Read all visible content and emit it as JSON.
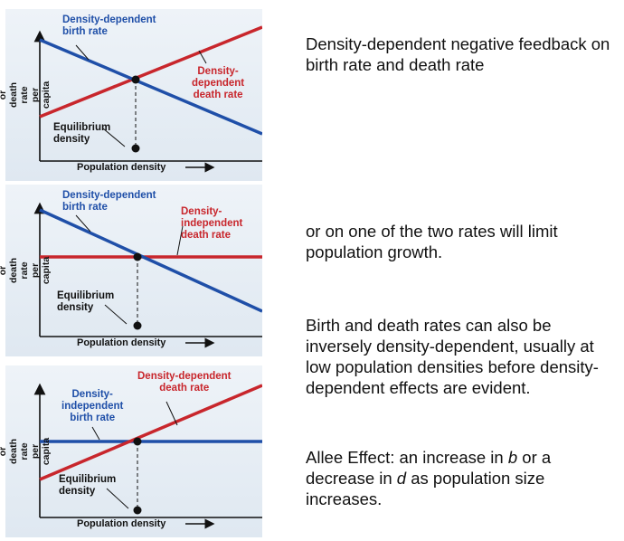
{
  "panels": [
    {
      "title": "density-dependent-birth-and-death",
      "y_axis_label": "Birth or death rate\nper capita",
      "x_axis_label": "Population density",
      "birth_label": "Density-dependent\nbirth rate",
      "death_label": "Density-\ndependent\ndeath rate",
      "equilibrium_label": "Equilibrium\ndensity",
      "birth_color": "#1f4fa8",
      "death_color": "#c8262c"
    },
    {
      "title": "density-dependent-birth-only",
      "y_axis_label": "Birth or death rate\nper capita",
      "x_axis_label": "Population density",
      "birth_label": "Density-dependent\nbirth rate",
      "death_label": "Density-\nindependent\ndeath rate",
      "equilibrium_label": "Equilibrium\ndensity",
      "birth_color": "#1f4fa8",
      "death_color": "#c8262c"
    },
    {
      "title": "density-dependent-death-only",
      "y_axis_label": "Birth or death rate\nper capita",
      "x_axis_label": "Population density",
      "birth_label": "Density-\nindependent\nbirth rate",
      "death_label": "Density-dependent\ndeath rate",
      "equilibrium_label": "Equilibrium\ndensity",
      "birth_color": "#1f4fa8",
      "death_color": "#c8262c"
    }
  ],
  "text": {
    "p1": "Density-dependent negative feedback on birth rate and death rate",
    "p2": "or on one of the two rates will limit population growth.",
    "p3": "Birth and death rates can also be inversely density-dependent, usually at low population densities before density-dependent effects are evident.",
    "p4_prefix": "Allee Effect: an increase in ",
    "p4_b": "b",
    "p4_mid": " or a decrease in ",
    "p4_d": "d",
    "p4_suffix": " as population size increases."
  }
}
